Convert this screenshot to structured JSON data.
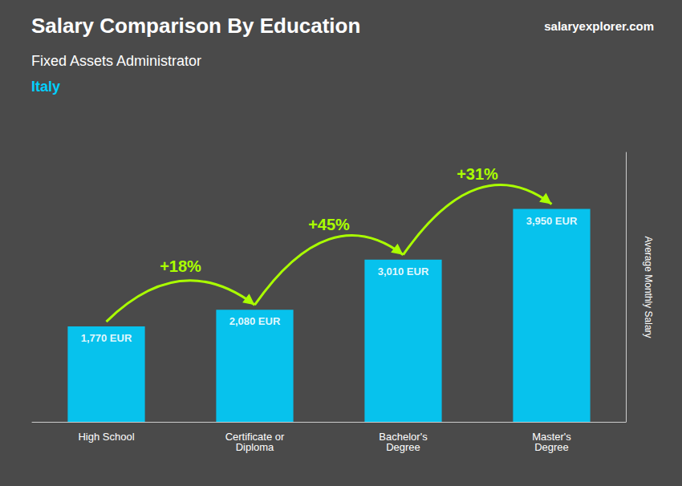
{
  "chart_data": {
    "type": "bar",
    "title": "Salary Comparison By Education",
    "subtitle": [
      "Fixed Assets Administrator",
      "Italy"
    ],
    "source": "salaryexplorer.com",
    "ylabel": "Average Monthly Salary",
    "categories": [
      "High School",
      "Certificate or\nDiploma",
      "Bachelor's\nDegree",
      "Master's\nDegree"
    ],
    "values": [
      1770,
      2080,
      3010,
      3950
    ],
    "value_labels": [
      "1,770 EUR",
      "2,080 EUR",
      "3,010 EUR",
      "3,950 EUR"
    ],
    "data_labels": true,
    "annotations": [
      "+18%",
      "+45%",
      "+31%"
    ],
    "color": "#00cfff",
    "ylim": [
      0,
      5000
    ],
    "tick_labels": "x",
    "grid": false
  }
}
